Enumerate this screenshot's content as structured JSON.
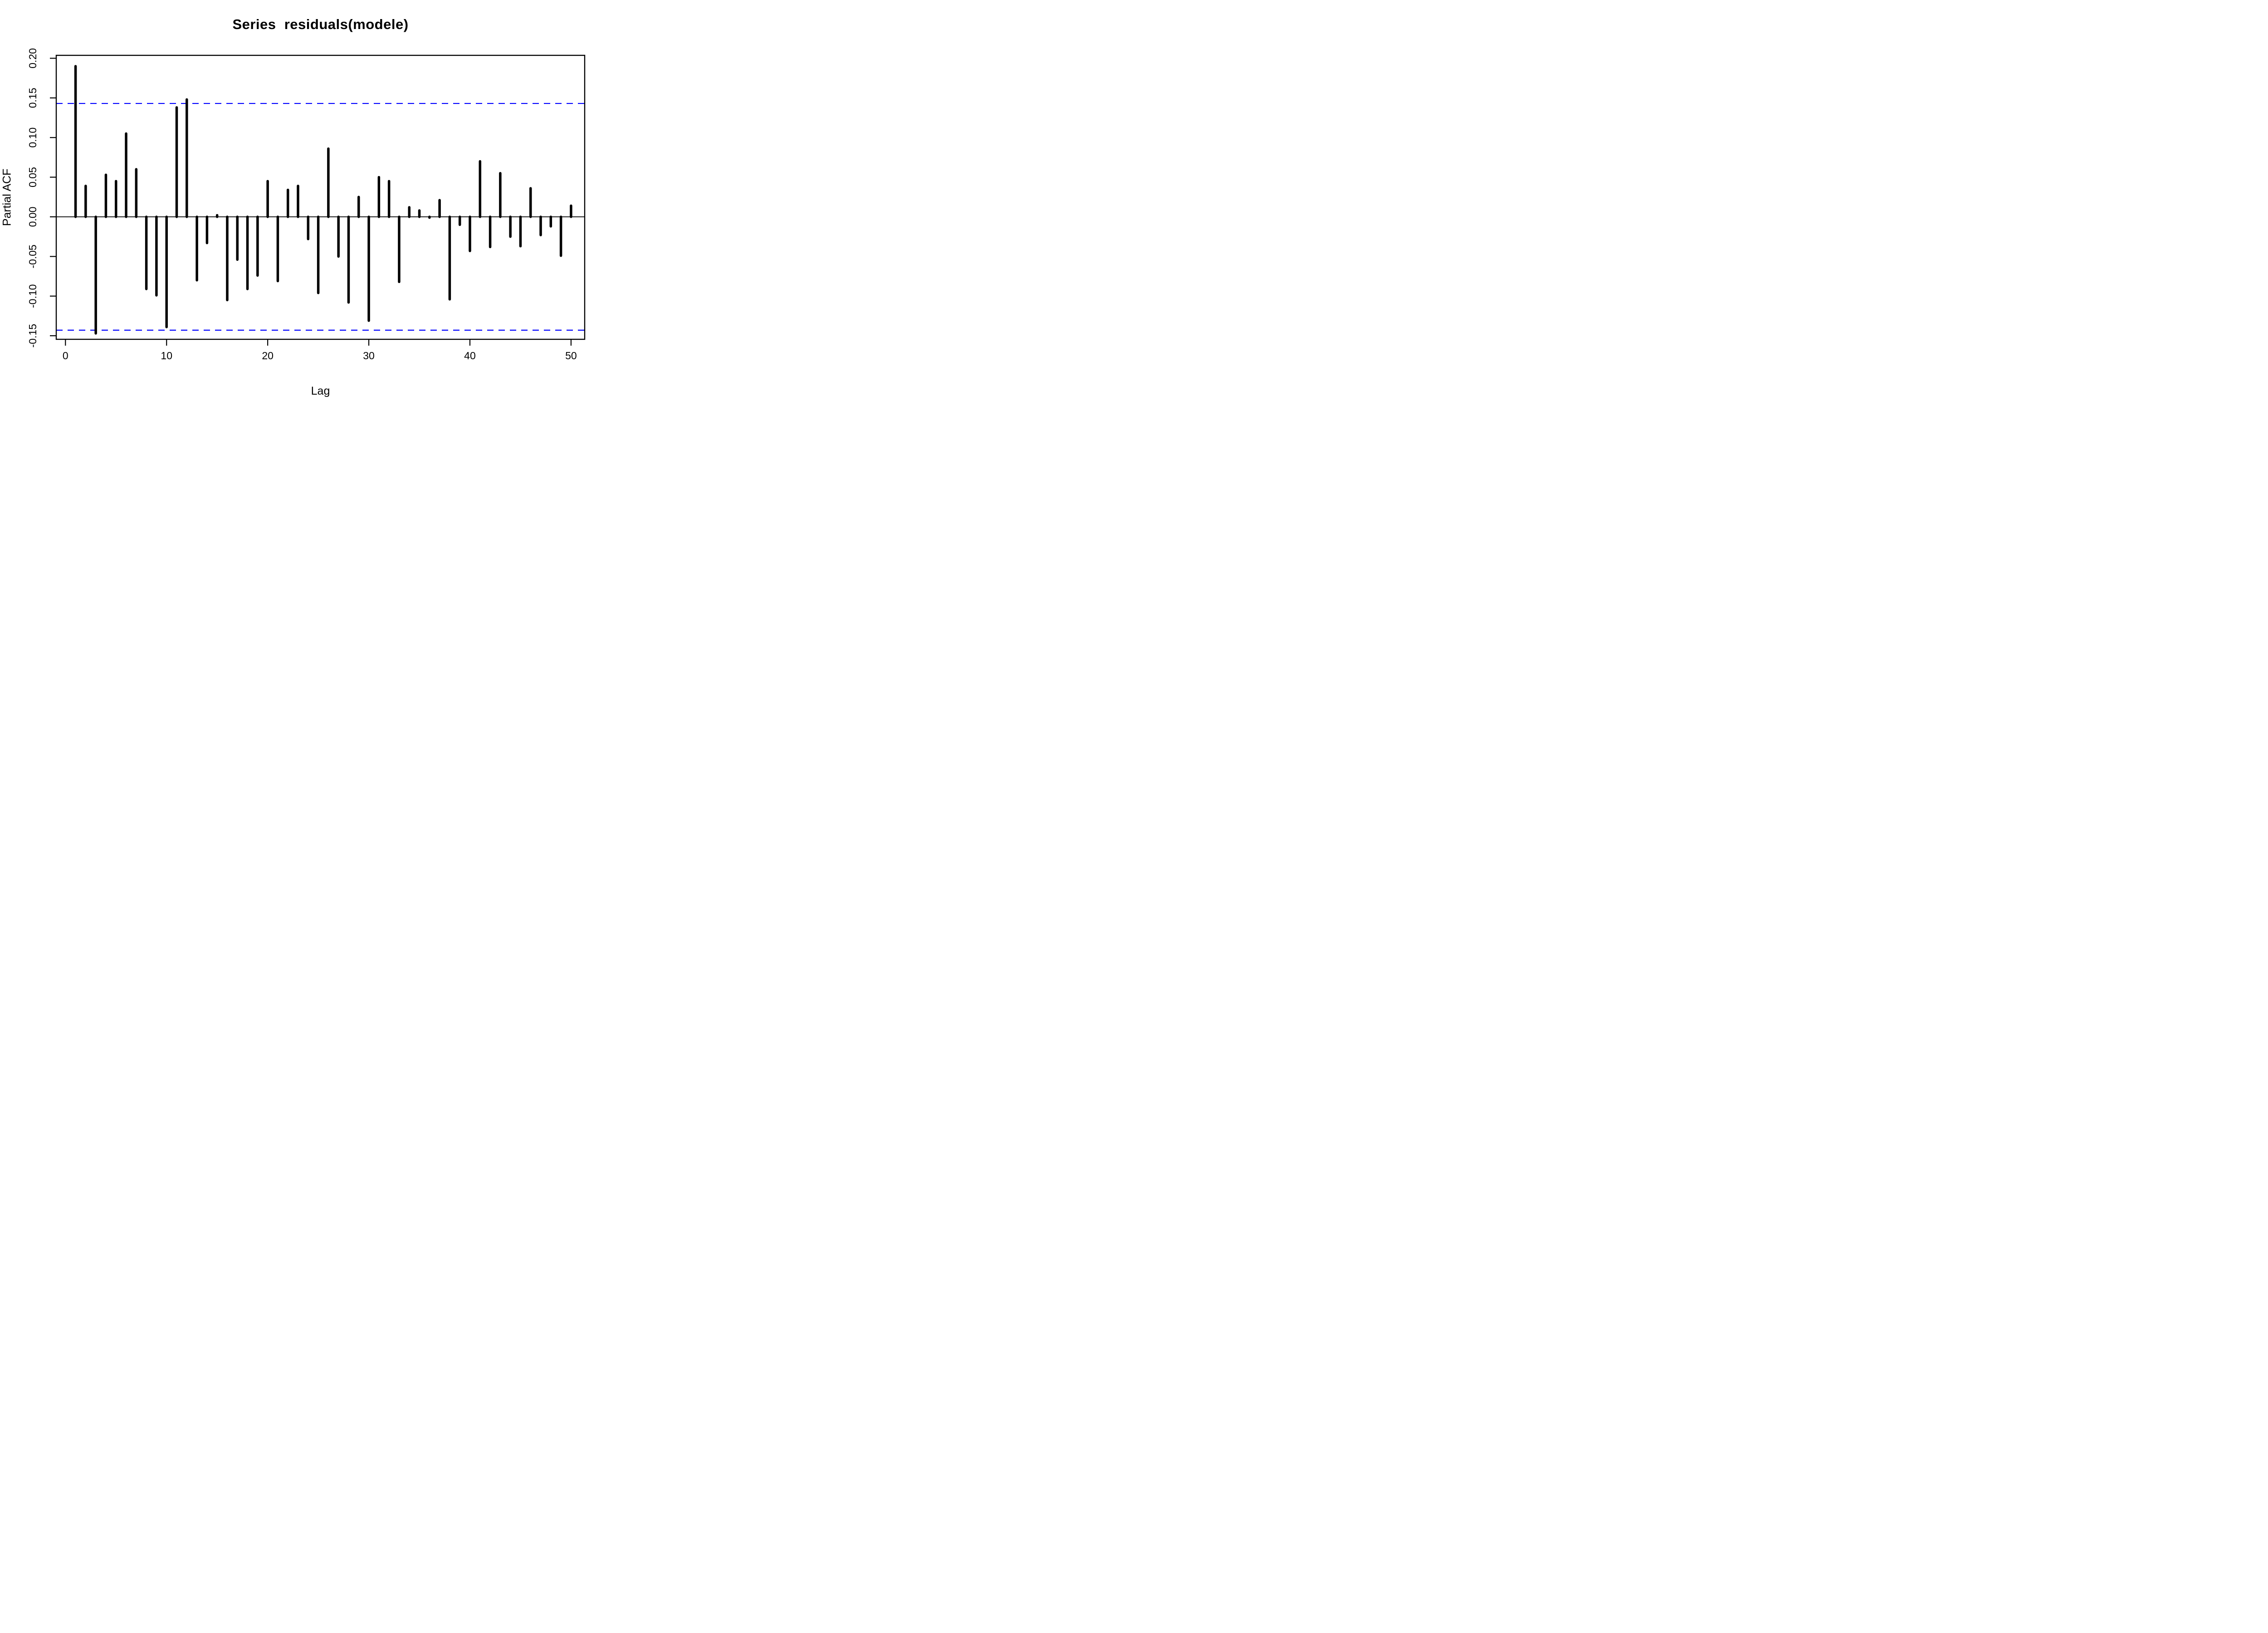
{
  "chart": {
    "title": "Series  residuals(modele)",
    "ylabel": "Partial ACF",
    "xlabel": "Lag"
  },
  "chart_data": {
    "type": "bar",
    "subtype": "stem-pacf",
    "title": "Series  residuals(modele)",
    "xlabel": "Lag",
    "ylabel": "Partial ACF",
    "x": [
      1,
      2,
      3,
      4,
      5,
      6,
      7,
      8,
      9,
      10,
      11,
      12,
      13,
      14,
      15,
      16,
      17,
      18,
      19,
      20,
      21,
      22,
      23,
      24,
      25,
      26,
      27,
      28,
      29,
      30,
      31,
      32,
      33,
      34,
      35,
      36,
      37,
      38,
      39,
      40,
      41,
      42,
      43,
      44,
      45,
      46,
      47,
      48,
      49,
      50
    ],
    "values": [
      0.19,
      0.039,
      -0.147,
      0.053,
      0.045,
      0.105,
      0.06,
      -0.091,
      -0.099,
      -0.139,
      0.138,
      0.148,
      -0.08,
      -0.033,
      0.002,
      -0.105,
      -0.054,
      -0.091,
      -0.074,
      0.045,
      -0.081,
      0.034,
      0.039,
      -0.028,
      -0.096,
      0.086,
      -0.05,
      -0.108,
      0.025,
      -0.131,
      0.05,
      0.045,
      -0.082,
      0.012,
      0.008,
      -0.001,
      0.021,
      -0.104,
      -0.01,
      -0.043,
      0.07,
      -0.038,
      0.055,
      -0.025,
      -0.037,
      0.036,
      -0.023,
      -0.012,
      -0.049,
      0.014
    ],
    "confidence_bounds": {
      "upper": 0.143,
      "lower": -0.143,
      "style": "dashed",
      "color": "#0000ff"
    },
    "xlim": [
      -0.91,
      51.35
    ],
    "ylim": [
      -0.1545,
      0.2037
    ],
    "yticks": [
      -0.15,
      -0.1,
      -0.05,
      0.0,
      0.05,
      0.1,
      0.15,
      0.2
    ],
    "xticks": [
      0,
      10,
      20,
      30,
      40,
      50
    ],
    "grid": "off",
    "legend": "none",
    "bar_color": "#000000",
    "axis_color": "#000000",
    "zero_line": 0.0
  }
}
